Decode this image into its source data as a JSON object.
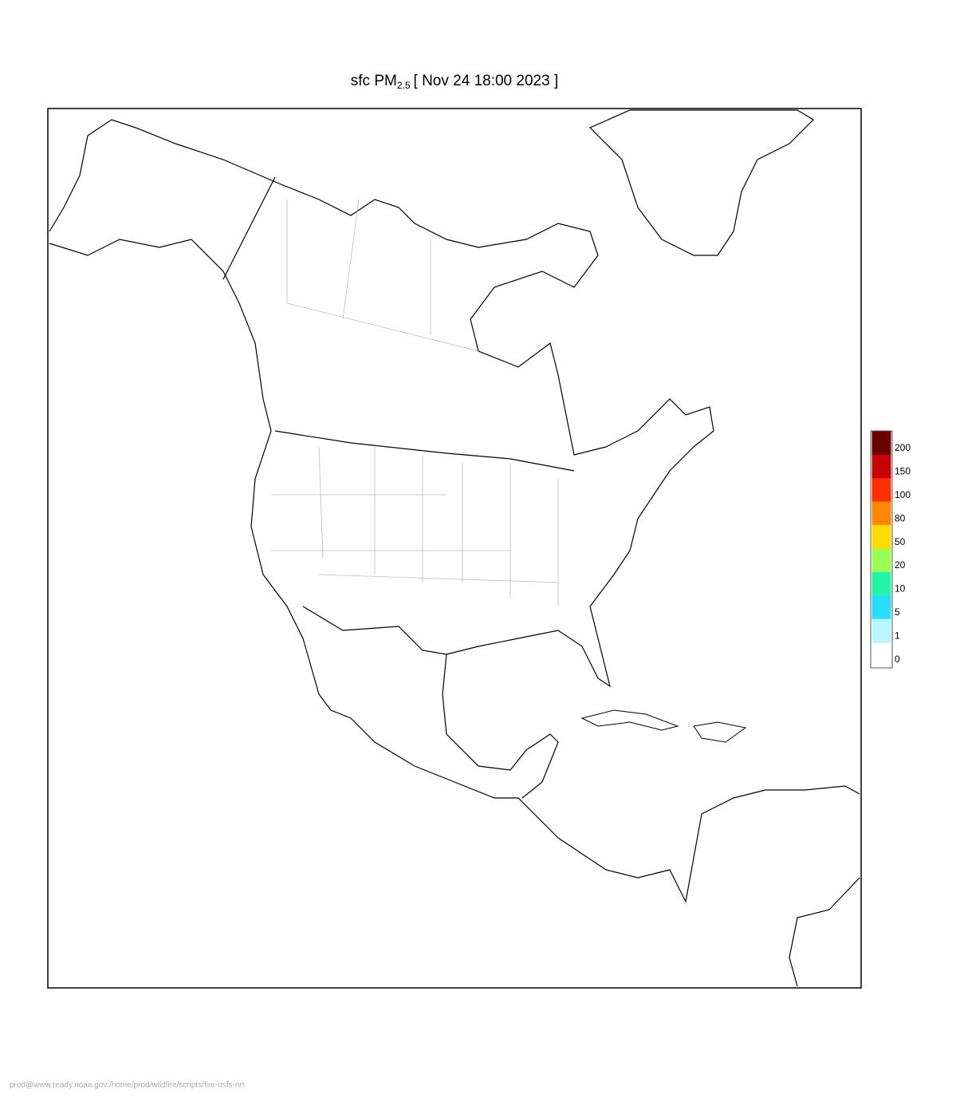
{
  "map": {
    "title": {
      "prefix": "sfc PM",
      "subscript": "2.5",
      "suffix": "[ Nov 24 18:00 2023 ]"
    },
    "legend": {
      "levels": [
        200,
        150,
        100,
        80,
        50,
        20,
        10,
        5,
        1,
        0
      ],
      "colors": [
        "#6b0000",
        "#c80000",
        "#ff3000",
        "#ff8800",
        "#ffdd00",
        "#99ff55",
        "#22f5aa",
        "#28ddff",
        "#bbf6ff",
        "#ffffff"
      ]
    },
    "footer": "prod@www.ready.noaa.gov:/home/prod/wildfire/scripts/fire-nsfs-nrt"
  }
}
